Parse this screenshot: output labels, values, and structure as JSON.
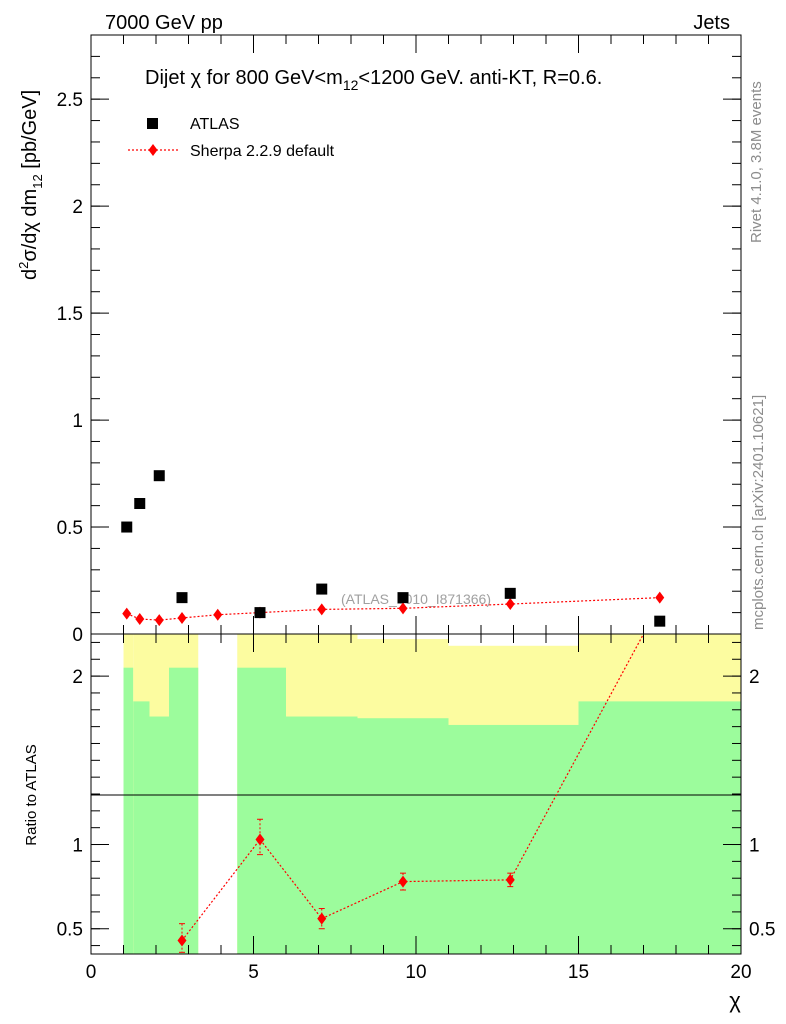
{
  "header": {
    "left": "7000 GeV pp",
    "right": "Jets"
  },
  "side": {
    "rivet": "Rivet 4.1.0,  3.8M events",
    "mcplots": "mcplots.cern.ch [arXiv:2401.10621]"
  },
  "colors": {
    "data": "#000000",
    "mc": "#ff0000",
    "band_inner": "#9cfc9c",
    "band_outer": "#fcfca0"
  },
  "chart_data": [
    {
      "type": "scatter",
      "title_parts": {
        "a": "Dijet ",
        "chi": "χ",
        "b": " for 800 GeV<m",
        "sub": "12",
        "c": "<1200 GeV.  anti-KT, R=0.6."
      },
      "ylabel_parts": {
        "d": "d",
        "sup": "2",
        "mid": "σ/dχ dm",
        "sub": "12",
        "unit": " [pb/GeV]"
      },
      "watermark": "(ATLAS_2010_I871366)",
      "xlim": [
        0,
        20
      ],
      "ylim": [
        0,
        2.8
      ],
      "yticks": [
        {
          "v": 0,
          "label": "0"
        },
        {
          "v": 0.5,
          "label": "0.5"
        },
        {
          "v": 1,
          "label": "1"
        },
        {
          "v": 1.5,
          "label": "1.5"
        },
        {
          "v": 2,
          "label": "2"
        },
        {
          "v": 2.5,
          "label": "2.5"
        }
      ],
      "legend": {
        "data": "ATLAS",
        "mc": "Sherpa 2.2.9 default"
      },
      "series": [
        {
          "name": "ATLAS",
          "x": [
            1.1,
            1.5,
            2.1,
            2.8,
            5.2,
            7.1,
            9.6,
            12.9,
            17.5
          ],
          "y": [
            0.5,
            0.61,
            0.74,
            0.17,
            0.1,
            0.21,
            0.17,
            0.19,
            0.06
          ]
        },
        {
          "name": "Sherpa 2.2.9 default",
          "x": [
            1.1,
            1.5,
            2.1,
            2.8,
            3.9,
            5.2,
            7.1,
            9.6,
            12.9,
            17.5
          ],
          "y": [
            0.095,
            0.07,
            0.065,
            0.075,
            0.09,
            0.1,
            0.115,
            0.12,
            0.14,
            0.17
          ]
        }
      ]
    },
    {
      "type": "scatter",
      "ylabel": "Ratio to ATLAS",
      "xlabel": "χ",
      "xlim": [
        0,
        20
      ],
      "ylim": [
        0.35,
        2.25
      ],
      "xticks": [
        {
          "v": 0,
          "label": "0"
        },
        {
          "v": 5,
          "label": "5"
        },
        {
          "v": 10,
          "label": "10"
        },
        {
          "v": 15,
          "label": "15"
        },
        {
          "v": 20,
          "label": "20"
        }
      ],
      "yticks": [
        {
          "v": 0.5,
          "label": "0.5"
        },
        {
          "v": 1,
          "label": "1"
        },
        {
          "v": 2,
          "label": "2"
        }
      ],
      "bands": [
        {
          "x0": 1.0,
          "x1": 1.3,
          "inner": 2.05,
          "outer": 2.25
        },
        {
          "x0": 1.3,
          "x1": 1.8,
          "inner": 1.85,
          "outer": 2.25
        },
        {
          "x0": 1.8,
          "x1": 2.4,
          "inner": 1.76,
          "outer": 2.25
        },
        {
          "x0": 2.4,
          "x1": 3.3,
          "inner": 2.05,
          "outer": 2.25
        },
        {
          "x0": 4.5,
          "x1": 6.0,
          "inner": 2.05,
          "outer": 2.25
        },
        {
          "x0": 6.0,
          "x1": 8.2,
          "inner": 1.76,
          "outer": 2.25
        },
        {
          "x0": 8.2,
          "x1": 11.0,
          "inner": 1.75,
          "outer": 2.22
        },
        {
          "x0": 11.0,
          "x1": 15.0,
          "inner": 1.71,
          "outer": 2.18
        },
        {
          "x0": 15.0,
          "x1": 20.0,
          "inner": 1.85,
          "outer": 2.25
        }
      ],
      "series": [
        {
          "name": "Sherpa 2.2.9 default / ATLAS",
          "x": [
            2.8,
            5.2,
            7.1,
            9.6,
            12.9
          ],
          "y": [
            0.43,
            1.03,
            0.56,
            0.78,
            0.79
          ],
          "err_lo": [
            0.07,
            0.09,
            0.06,
            0.05,
            0.04
          ],
          "err_hi": [
            0.1,
            0.12,
            0.06,
            0.05,
            0.04
          ],
          "line_x": [
            2.8,
            5.2,
            7.1,
            9.6,
            12.9,
            17.0
          ],
          "line_y": [
            0.43,
            1.03,
            0.56,
            0.78,
            0.79,
            2.25
          ]
        }
      ]
    }
  ]
}
